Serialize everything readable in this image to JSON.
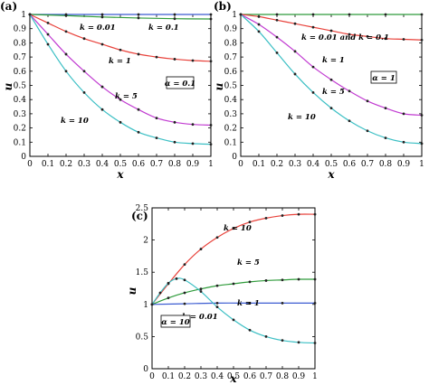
{
  "chart_data": [
    {
      "panel": "(a)",
      "type": "line",
      "xlabel": "x",
      "ylabel": "u",
      "xlim": [
        0,
        1
      ],
      "ylim": [
        0,
        1
      ],
      "xticks": [
        "0",
        "0.1",
        "0.2",
        "0.3",
        "0.4",
        "0.5",
        "0.6",
        "0.7",
        "0.8",
        "0.9",
        "1"
      ],
      "yticks": [
        "0",
        "0.1",
        "0.2",
        "0.3",
        "0.4",
        "0.5",
        "0.6",
        "0.7",
        "0.8",
        "0.9",
        "1"
      ],
      "grid": false,
      "parameter_box": "α = 0.1",
      "series": [
        {
          "label": "k = 0.01",
          "color": "#3b5bd1",
          "x": [
            0,
            0.2,
            0.4,
            0.6,
            0.8,
            1
          ],
          "y": [
            1,
            1,
            1,
            1,
            1,
            1
          ]
        },
        {
          "label": "k = 0.1",
          "color": "#2e9b3a",
          "x": [
            0,
            0.2,
            0.4,
            0.6,
            0.8,
            1
          ],
          "y": [
            1,
            0.992,
            0.982,
            0.975,
            0.97,
            0.968
          ]
        },
        {
          "label": "k = 1",
          "color": "#e8413a",
          "x": [
            0,
            0.1,
            0.2,
            0.3,
            0.4,
            0.5,
            0.6,
            0.7,
            0.8,
            0.9,
            1
          ],
          "y": [
            1,
            0.94,
            0.88,
            0.83,
            0.79,
            0.75,
            0.72,
            0.7,
            0.685,
            0.675,
            0.67
          ]
        },
        {
          "label": "k = 5",
          "color": "#c13bd1",
          "x": [
            0,
            0.1,
            0.2,
            0.3,
            0.4,
            0.5,
            0.6,
            0.7,
            0.8,
            0.9,
            1
          ],
          "y": [
            1,
            0.86,
            0.72,
            0.6,
            0.49,
            0.4,
            0.33,
            0.27,
            0.24,
            0.225,
            0.22
          ]
        },
        {
          "label": "k = 10",
          "color": "#3bbfc4",
          "x": [
            0,
            0.1,
            0.2,
            0.3,
            0.4,
            0.5,
            0.6,
            0.7,
            0.8,
            0.9,
            1
          ],
          "y": [
            1,
            0.79,
            0.6,
            0.45,
            0.33,
            0.24,
            0.17,
            0.13,
            0.1,
            0.09,
            0.085
          ]
        }
      ]
    },
    {
      "panel": "(b)",
      "type": "line",
      "xlabel": "x",
      "ylabel": "u",
      "xlim": [
        0,
        1
      ],
      "ylim": [
        0,
        1
      ],
      "xticks": [
        "0",
        "0.1",
        "0.2",
        "0.3",
        "0.4",
        "0.5",
        "0.6",
        "0.7",
        "0.8",
        "0.9",
        "1"
      ],
      "yticks": [
        "0",
        "0.1",
        "0.2",
        "0.3",
        "0.4",
        "0.5",
        "0.6",
        "0.7",
        "0.8",
        "0.9",
        "1"
      ],
      "grid": false,
      "parameter_box": "α = 1",
      "series": [
        {
          "label": "k = 0.01 and k = 0.1",
          "color": "#2e9b3a",
          "x": [
            0,
            0.2,
            0.4,
            0.6,
            0.8,
            1
          ],
          "y": [
            1,
            1,
            1,
            1,
            1,
            1
          ]
        },
        {
          "label": "k = 1",
          "color": "#e8413a",
          "x": [
            0,
            0.1,
            0.2,
            0.3,
            0.4,
            0.5,
            0.6,
            0.7,
            0.8,
            0.9,
            1
          ],
          "y": [
            1,
            0.985,
            0.96,
            0.935,
            0.91,
            0.885,
            0.86,
            0.845,
            0.83,
            0.825,
            0.82
          ]
        },
        {
          "label": "k = 5",
          "color": "#c13bd1",
          "x": [
            0,
            0.1,
            0.2,
            0.3,
            0.4,
            0.5,
            0.6,
            0.7,
            0.8,
            0.9,
            1
          ],
          "y": [
            1,
            0.93,
            0.84,
            0.74,
            0.63,
            0.54,
            0.46,
            0.39,
            0.34,
            0.3,
            0.29
          ]
        },
        {
          "label": "k = 10",
          "color": "#3bbfc4",
          "x": [
            0,
            0.1,
            0.2,
            0.3,
            0.4,
            0.5,
            0.6,
            0.7,
            0.8,
            0.9,
            1
          ],
          "y": [
            1,
            0.88,
            0.73,
            0.58,
            0.45,
            0.34,
            0.25,
            0.18,
            0.13,
            0.1,
            0.09
          ]
        }
      ]
    },
    {
      "panel": "(c)",
      "type": "line",
      "xlabel": "x",
      "ylabel": "u",
      "xlim": [
        0,
        1
      ],
      "ylim": [
        0,
        2.5
      ],
      "xticks": [
        "0",
        "0.1",
        "0.2",
        "0.3",
        "0.4",
        "0.5",
        "0.6",
        "0.7",
        "0.8",
        "0.9",
        "1"
      ],
      "yticks": [
        "0",
        "0.5",
        "1",
        "1.5",
        "2",
        "2.5"
      ],
      "grid": false,
      "parameter_box": "α = 10",
      "series": [
        {
          "label": "k = 10",
          "color": "#e8413a",
          "x": [
            0,
            0.1,
            0.2,
            0.3,
            0.4,
            0.5,
            0.6,
            0.7,
            0.8,
            0.9,
            1
          ],
          "y": [
            1,
            1.32,
            1.62,
            1.86,
            2.04,
            2.18,
            2.28,
            2.34,
            2.38,
            2.4,
            2.4
          ]
        },
        {
          "label": "k = 5",
          "color": "#2e9b3a",
          "x": [
            0,
            0.1,
            0.2,
            0.3,
            0.4,
            0.5,
            0.6,
            0.7,
            0.8,
            0.9,
            1
          ],
          "y": [
            1,
            1.1,
            1.18,
            1.24,
            1.29,
            1.32,
            1.35,
            1.37,
            1.38,
            1.39,
            1.39
          ]
        },
        {
          "label": "k = 1",
          "color": "#3b5bd1",
          "x": [
            0,
            0.2,
            0.4,
            0.6,
            0.8,
            1
          ],
          "y": [
            1,
            1.01,
            1.02,
            1.02,
            1.02,
            1.02
          ]
        },
        {
          "label": "k = 0.01",
          "color": "#3bbfc4",
          "x": [
            0,
            0.05,
            0.1,
            0.15,
            0.2,
            0.3,
            0.4,
            0.5,
            0.6,
            0.7,
            0.8,
            0.9,
            1
          ],
          "y": [
            1,
            1.18,
            1.33,
            1.4,
            1.38,
            1.2,
            0.96,
            0.76,
            0.6,
            0.5,
            0.44,
            0.41,
            0.4
          ]
        }
      ]
    }
  ]
}
